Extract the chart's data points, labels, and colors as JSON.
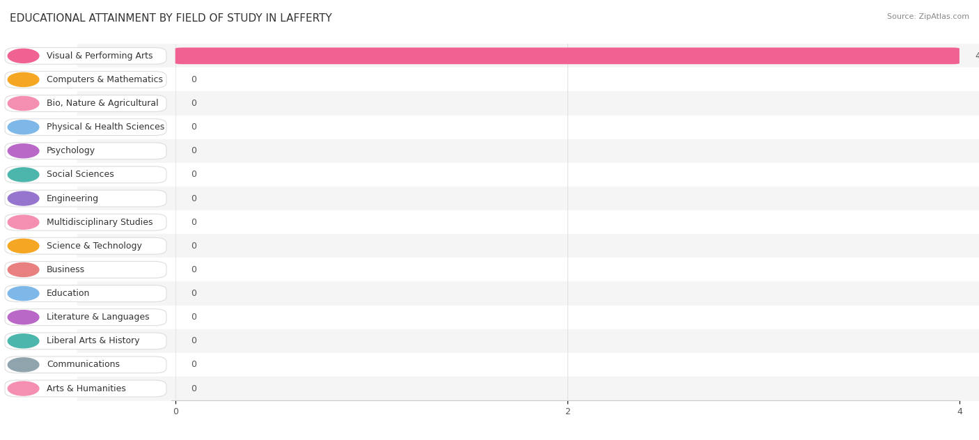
{
  "title": "EDUCATIONAL ATTAINMENT BY FIELD OF STUDY IN LAFFERTY",
  "source": "Source: ZipAtlas.com",
  "categories": [
    "Visual & Performing Arts",
    "Computers & Mathematics",
    "Bio, Nature & Agricultural",
    "Physical & Health Sciences",
    "Psychology",
    "Social Sciences",
    "Engineering",
    "Multidisciplinary Studies",
    "Science & Technology",
    "Business",
    "Education",
    "Literature & Languages",
    "Liberal Arts & History",
    "Communications",
    "Arts & Humanities"
  ],
  "values": [
    4,
    0,
    0,
    0,
    0,
    0,
    0,
    0,
    0,
    0,
    0,
    0,
    0,
    0,
    0
  ],
  "bar_colors": [
    "#f06292",
    "#f5c9a0",
    "#f4a7b9",
    "#a8c8e8",
    "#d4aee8",
    "#8ecec9",
    "#b8aadc",
    "#f4a7b9",
    "#f5c9a0",
    "#f0a8a8",
    "#a8c8e8",
    "#d4aee8",
    "#8ecec9",
    "#b8c4d0",
    "#f4a7b9"
  ],
  "icon_colors": [
    "#f06292",
    "#f5a623",
    "#f48fb1",
    "#7eb8e8",
    "#ba68c8",
    "#4db6ac",
    "#9575cd",
    "#f48fb1",
    "#f5a623",
    "#e88080",
    "#7eb8e8",
    "#ba68c8",
    "#4db6ac",
    "#90a4ae",
    "#f48fb1"
  ],
  "xlim": [
    0,
    4
  ],
  "xticks": [
    0,
    2,
    4
  ],
  "background_color": "#ffffff",
  "row_bg_odd": "#f8f8f8",
  "row_bg_even": "#ffffff",
  "title_fontsize": 11,
  "label_fontsize": 9,
  "value_fontsize": 9
}
